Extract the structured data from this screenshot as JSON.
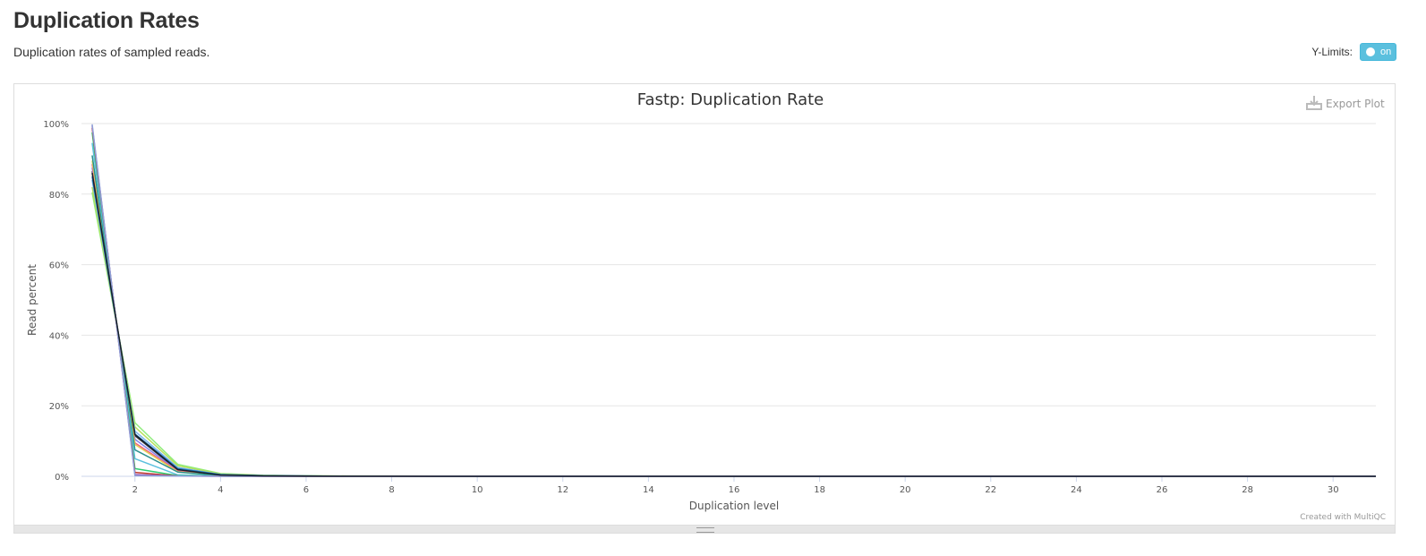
{
  "section": {
    "title": "Duplication Rates",
    "description": "Duplication rates of sampled reads."
  },
  "ylimits": {
    "label": "Y-Limits:",
    "toggle_text": "on"
  },
  "export": {
    "label": "Export Plot"
  },
  "credit": "Created with MultiQC",
  "chart_data": {
    "type": "line",
    "title": "Fastp: Duplication Rate",
    "xlabel": "Duplication level",
    "ylabel": "Read percent",
    "xlim": [
      0.75,
      31
    ],
    "ylim": [
      0,
      100
    ],
    "x_ticks": [
      2,
      4,
      6,
      8,
      10,
      12,
      14,
      16,
      18,
      20,
      22,
      24,
      26,
      28,
      30
    ],
    "y_ticks": [
      0,
      20,
      40,
      60,
      80,
      100
    ],
    "y_tick_labels": [
      "0%",
      "20%",
      "40%",
      "60%",
      "80%",
      "100%"
    ],
    "x": [
      1,
      2,
      3,
      4,
      5,
      6,
      7,
      8,
      9,
      10,
      11,
      12,
      13,
      14,
      15,
      16,
      17,
      18,
      19,
      20,
      21,
      22,
      23,
      24,
      25,
      26,
      27,
      28,
      29,
      30,
      31
    ],
    "series": [
      {
        "color": "#90ed7d",
        "values": [
          80.5,
          15.2,
          3.4,
          0.8,
          0.3,
          0.15,
          0.1,
          0.05,
          0.03,
          0.02,
          0.02,
          0.01,
          0.01,
          0.01,
          0.01,
          0.01,
          0.01,
          0.01,
          0.01,
          0.01,
          0.01,
          0.01,
          0.01,
          0.01,
          0.01,
          0.01,
          0.01,
          0.01,
          0.01,
          0.01,
          0.01
        ]
      },
      {
        "color": "#b5e15a",
        "values": [
          82.0,
          14.0,
          3.0,
          0.7,
          0.25,
          0.12,
          0.07,
          0.04,
          0.03,
          0.02,
          0.01,
          0.01,
          0.01,
          0.01,
          0.01,
          0.01,
          0.01,
          0.01,
          0.01,
          0.01,
          0.01,
          0.01,
          0.01,
          0.01,
          0.01,
          0.01,
          0.01,
          0.01,
          0.01,
          0.01,
          0.01
        ]
      },
      {
        "color": "#7cb5ec",
        "values": [
          84.0,
          12.8,
          2.5,
          0.5,
          0.2,
          0.1,
          0.05,
          0.03,
          0.02,
          0.01,
          0.01,
          0.01,
          0.01,
          0.01,
          0.01,
          0.01,
          0.01,
          0.01,
          0.01,
          0.01,
          0.01,
          0.01,
          0.01,
          0.01,
          0.01,
          0.01,
          0.01,
          0.01,
          0.01,
          0.01,
          0.01
        ]
      },
      {
        "color": "#434348",
        "values": [
          86.5,
          11.5,
          1.8,
          0.4,
          0.15,
          0.08,
          0.04,
          0.02,
          0.01,
          0.01,
          0.01,
          0.01,
          0.01,
          0.01,
          0.01,
          0.01,
          0.01,
          0.01,
          0.01,
          0.01,
          0.01,
          0.01,
          0.01,
          0.01,
          0.01,
          0.01,
          0.01,
          0.01,
          0.01,
          0.01,
          0.01
        ]
      },
      {
        "color": "#8085e9",
        "values": [
          87.5,
          10.5,
          1.6,
          0.3,
          0.1,
          0.05,
          0.03,
          0.02,
          0.01,
          0.01,
          0.01,
          0.01,
          0.01,
          0.01,
          0.01,
          0.01,
          0.01,
          0.01,
          0.01,
          0.01,
          0.01,
          0.01,
          0.01,
          0.01,
          0.01,
          0.01,
          0.01,
          0.01,
          0.01,
          0.01,
          0.01
        ]
      },
      {
        "color": "#f15c80",
        "values": [
          88.5,
          9.5,
          1.5,
          0.3,
          0.1,
          0.05,
          0.03,
          0.02,
          0.01,
          0.01,
          0.01,
          0.01,
          0.01,
          0.01,
          0.01,
          0.01,
          0.01,
          0.01,
          0.01,
          0.01,
          0.01,
          0.01,
          0.01,
          0.01,
          0.01,
          0.01,
          0.01,
          0.01,
          0.01,
          0.01,
          0.01
        ]
      },
      {
        "color": "#e4d354",
        "values": [
          89.5,
          9.0,
          1.3,
          0.2,
          0.08,
          0.04,
          0.02,
          0.01,
          0.01,
          0.01,
          0.01,
          0.01,
          0.01,
          0.01,
          0.01,
          0.01,
          0.01,
          0.01,
          0.01,
          0.01,
          0.01,
          0.01,
          0.01,
          0.01,
          0.01,
          0.01,
          0.01,
          0.01,
          0.01,
          0.01,
          0.01
        ]
      },
      {
        "color": "#2b908f",
        "values": [
          91.0,
          7.5,
          1.2,
          0.2,
          0.08,
          0.04,
          0.02,
          0.01,
          0.01,
          0.01,
          0.01,
          0.01,
          0.01,
          0.01,
          0.01,
          0.01,
          0.01,
          0.01,
          0.01,
          0.01,
          0.01,
          0.01,
          0.01,
          0.01,
          0.01,
          0.01,
          0.01,
          0.01,
          0.01,
          0.01,
          0.01
        ]
      },
      {
        "color": "#1f77b4",
        "values": [
          85.0,
          12.0,
          2.2,
          0.5,
          0.2,
          0.08,
          0.04,
          0.02,
          0.01,
          0.01,
          0.01,
          0.01,
          0.01,
          0.01,
          0.01,
          0.01,
          0.01,
          0.01,
          0.01,
          0.01,
          0.01,
          0.01,
          0.01,
          0.01,
          0.01,
          0.01,
          0.01,
          0.01,
          0.01,
          0.01,
          0.01
        ]
      },
      {
        "color": "#5bc0de",
        "values": [
          94.5,
          5.0,
          0.4,
          0.05,
          0.02,
          0.01,
          0.01,
          0.01,
          0.01,
          0.01,
          0.01,
          0.01,
          0.01,
          0.01,
          0.01,
          0.01,
          0.01,
          0.01,
          0.01,
          0.01,
          0.01,
          0.01,
          0.01,
          0.01,
          0.01,
          0.01,
          0.01,
          0.01,
          0.01,
          0.01,
          0.01
        ]
      },
      {
        "color": "#2ecc71",
        "values": [
          97.5,
          2.2,
          0.2,
          0.05,
          0.02,
          0.01,
          0.01,
          0.01,
          0.01,
          0.01,
          0.01,
          0.01,
          0.01,
          0.01,
          0.01,
          0.01,
          0.01,
          0.01,
          0.01,
          0.01,
          0.01,
          0.01,
          0.01,
          0.01,
          0.01,
          0.01,
          0.01,
          0.01,
          0.01,
          0.01,
          0.01
        ]
      },
      {
        "color": "#c0392b",
        "values": [
          98.8,
          1.1,
          0.1,
          0.02,
          0.01,
          0.01,
          0.01,
          0.01,
          0.01,
          0.01,
          0.01,
          0.01,
          0.01,
          0.01,
          0.01,
          0.01,
          0.01,
          0.01,
          0.01,
          0.01,
          0.01,
          0.01,
          0.01,
          0.01,
          0.01,
          0.01,
          0.01,
          0.01,
          0.01,
          0.01,
          0.01
        ]
      },
      {
        "color": "#9b59b6",
        "values": [
          99.4,
          0.5,
          0.1,
          0.02,
          0.01,
          0.01,
          0.01,
          0.01,
          0.01,
          0.01,
          0.01,
          0.01,
          0.01,
          0.01,
          0.01,
          0.01,
          0.01,
          0.01,
          0.01,
          0.01,
          0.01,
          0.01,
          0.01,
          0.01,
          0.01,
          0.01,
          0.01,
          0.01,
          0.01,
          0.01,
          0.01
        ]
      },
      {
        "color": "#8fa1d8",
        "values": [
          99.8,
          0.2,
          0.05,
          0.01,
          0.01,
          0.01,
          0.01,
          0.01,
          0.01,
          0.01,
          0.01,
          0.01,
          0.01,
          0.01,
          0.01,
          0.01,
          0.01,
          0.01,
          0.01,
          0.01,
          0.01,
          0.01,
          0.01,
          0.01,
          0.01,
          0.01,
          0.01,
          0.01,
          0.01,
          0.01,
          0.01
        ]
      },
      {
        "color": "#17202a",
        "values": [
          86.0,
          11.8,
          1.9,
          0.35,
          0.12,
          0.06,
          0.03,
          0.02,
          0.01,
          0.01,
          0.01,
          0.01,
          0.01,
          0.01,
          0.01,
          0.01,
          0.01,
          0.01,
          0.01,
          0.01,
          0.01,
          0.01,
          0.01,
          0.01,
          0.01,
          0.01,
          0.01,
          0.01,
          0.01,
          0.01,
          0.01
        ]
      }
    ]
  }
}
